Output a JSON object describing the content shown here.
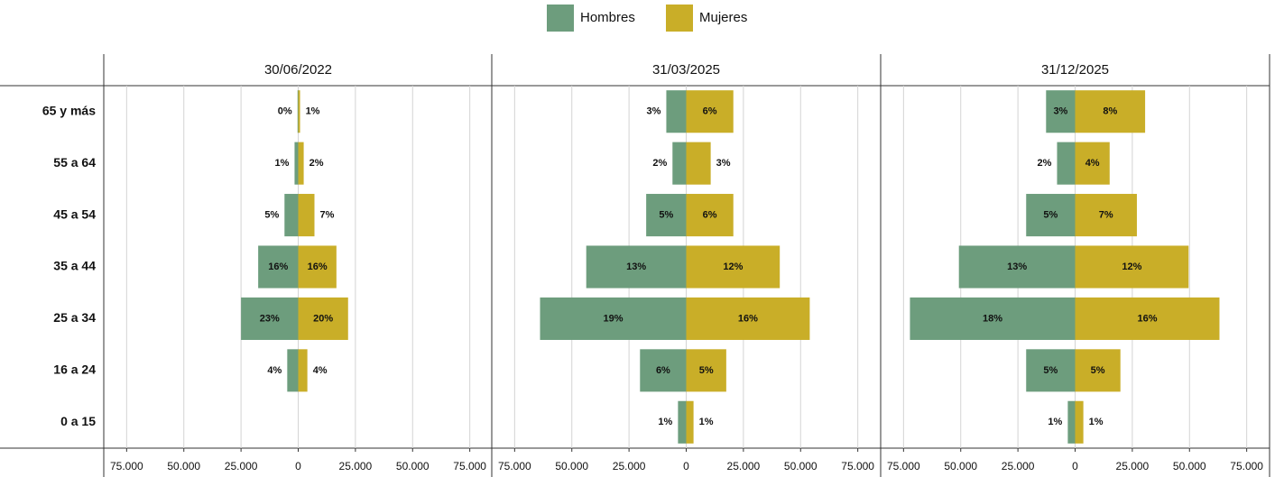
{
  "chart_data": {
    "type": "bar",
    "categories": [
      "65 y más",
      "55 a 64",
      "45 a 54",
      "35 a 44",
      "25 a 34",
      "16 a 24",
      "0 a 15"
    ],
    "series": [
      {
        "name": "Hombres",
        "color": "#6d9d7d"
      },
      {
        "name": "Mujeres",
        "color": "#c9ae28"
      }
    ],
    "xlim": [
      -85000,
      85000
    ],
    "xticks": [
      {
        "value": -75000,
        "label": "75.000"
      },
      {
        "value": -50000,
        "label": "50.000"
      },
      {
        "value": -25000,
        "label": "25.000"
      },
      0,
      {
        "value": 25000,
        "label": "25.000"
      },
      {
        "value": 50000,
        "label": "50.000"
      },
      {
        "value": 75000,
        "label": "75.000"
      }
    ],
    "grid": true,
    "panels": [
      {
        "title": "30/06/2022",
        "series": [
          {
            "values": [
              -300,
              -1600,
              -6000,
              -17500,
              -25000,
              -4800,
              null
            ],
            "data_labels": [
              "0%",
              "1%",
              "5%",
              "16%",
              "23%",
              "4%",
              null
            ]
          },
          {
            "values": [
              800,
              2400,
              7100,
              16700,
              21800,
              4000,
              null
            ],
            "data_labels": [
              "1%",
              "2%",
              "7%",
              "16%",
              "20%",
              "4%",
              null
            ]
          }
        ]
      },
      {
        "title": "31/03/2025",
        "series": [
          {
            "values": [
              -8700,
              -6000,
              -17500,
              -43700,
              -63900,
              -20200,
              -3600
            ],
            "data_labels": [
              "3%",
              "2%",
              "5%",
              "13%",
              "19%",
              "6%",
              "1%"
            ]
          },
          {
            "values": [
              20600,
              10700,
              20600,
              40900,
              54000,
              17500,
              3200
            ],
            "data_labels": [
              "6%",
              "3%",
              "6%",
              "12%",
              "16%",
              "5%",
              "1%"
            ]
          }
        ]
      },
      {
        "title": "31/12/2025",
        "series": [
          {
            "values": [
              -12700,
              -7900,
              -21400,
              -50800,
              -72200,
              -21400,
              -3200
            ],
            "data_labels": [
              "3%",
              "2%",
              "5%",
              "13%",
              "18%",
              "5%",
              "1%"
            ]
          },
          {
            "values": [
              30600,
              15100,
              27000,
              49600,
              63100,
              19800,
              3600
            ],
            "data_labels": [
              "8%",
              "4%",
              "7%",
              "12%",
              "16%",
              "5%",
              "1%"
            ]
          }
        ]
      }
    ]
  }
}
